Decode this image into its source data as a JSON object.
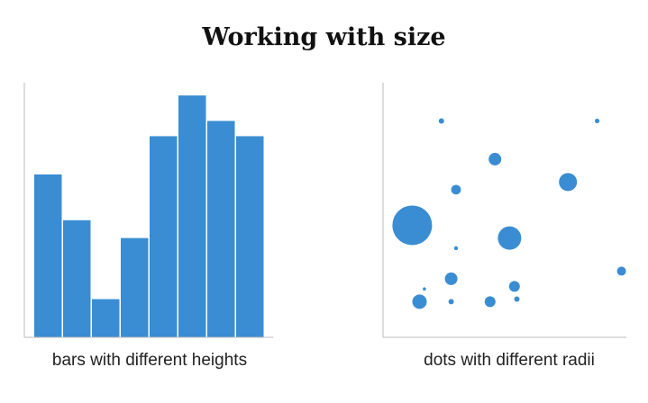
{
  "title": "Working with size",
  "colors": {
    "bar": "#3a8dd3",
    "dot": "#3a8dd3",
    "axis": "#bbbbbb"
  },
  "chart_data": [
    {
      "type": "bar",
      "xlabel": "bars with different heights",
      "values": [
        64,
        46,
        15,
        39,
        79,
        95,
        85,
        79
      ],
      "ylim": [
        0,
        100
      ],
      "grid": false
    },
    {
      "type": "scatter",
      "xlabel": "dots with different radii",
      "xlim": [
        0,
        100
      ],
      "ylim": [
        0,
        100
      ],
      "grid": false,
      "points": [
        {
          "x": 24,
          "y": 85,
          "size": 1.5
        },
        {
          "x": 88,
          "y": 85,
          "size": 1.3
        },
        {
          "x": 46,
          "y": 70,
          "size": 3.5
        },
        {
          "x": 76,
          "y": 61,
          "size": 5.0
        },
        {
          "x": 30,
          "y": 58,
          "size": 2.7
        },
        {
          "x": 12,
          "y": 44,
          "size": 11.0
        },
        {
          "x": 52,
          "y": 39,
          "size": 6.5
        },
        {
          "x": 30,
          "y": 35,
          "size": 1.1
        },
        {
          "x": 98,
          "y": 26,
          "size": 2.5
        },
        {
          "x": 28,
          "y": 23,
          "size": 3.5
        },
        {
          "x": 54,
          "y": 20,
          "size": 3.0
        },
        {
          "x": 17,
          "y": 19,
          "size": 0.9
        },
        {
          "x": 15,
          "y": 14,
          "size": 4.0
        },
        {
          "x": 28,
          "y": 14,
          "size": 1.5
        },
        {
          "x": 44,
          "y": 14,
          "size": 3.0
        },
        {
          "x": 55,
          "y": 15,
          "size": 1.5
        }
      ]
    }
  ]
}
